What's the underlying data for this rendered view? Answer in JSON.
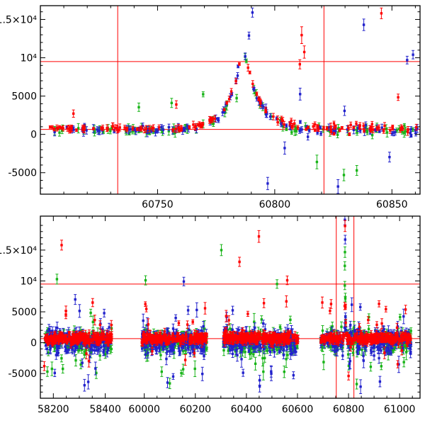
{
  "chart_data": {
    "type": "scatter",
    "description": "Two-panel light curve: flux vs MJD with error bars, three photometric series (blue, green, red), red crosshair reference lines. Bottom panel has a broken/compressed x-axis between observing seasons.",
    "panels": [
      {
        "id": "top",
        "type": "scatter",
        "x_axis": {
          "min": 60700,
          "max": 60862,
          "major_ticks": [
            60750,
            60800,
            60850
          ],
          "tick_labels": [
            "60750",
            "60800",
            "60850"
          ],
          "minor_step": 10,
          "map_breaks": [
            [
              60700,
              0
            ],
            [
              60862,
              1
            ]
          ]
        },
        "y_axis": {
          "min": -7800,
          "max": 16800,
          "major_ticks": [
            -5000,
            0,
            5000,
            10000,
            15000
          ],
          "tick_labels": [
            "-5000",
            "0",
            "5000",
            "10⁴",
            "1.5×10⁴"
          ],
          "minor_step": 1000
        },
        "ref_lines": {
          "color": "#ff0000",
          "horizontal": [
            650,
            9500
          ],
          "vertical": [
            60733,
            60821
          ]
        },
        "series": [
          {
            "name": "green",
            "color": "#18b418",
            "seed": 101,
            "n_mul": 0.72,
            "std_mul": 1.05,
            "level_add": -50,
            "err": 380,
            "neg_bias": 0.5
          },
          {
            "name": "blue",
            "color": "#2222cc",
            "seed": 202,
            "n_mul": 0.8,
            "std_mul": 1.15,
            "level_add": 0,
            "err": 330,
            "neg_bias": 0.5
          },
          {
            "name": "red",
            "color": "#ff0000",
            "seed": 303,
            "n_mul": 1.0,
            "std_mul": 0.8,
            "level_add": 150,
            "err": 280,
            "neg_bias": 0.3
          }
        ],
        "clusters": [
          {
            "x0": 60704,
            "x1": 60861,
            "n": 150,
            "level": 620,
            "std": 380,
            "out_frac": 0.03,
            "out_amp": 4200,
            "flare": {
              "t0": 60786.5,
              "amp": 11200,
              "rise": 5.5,
              "decay": 6.2
            },
            "wide_after": 60807,
            "wide_mul": 2.1
          }
        ],
        "extra_points": [
          {
            "s": "red",
            "x": 60811.5,
            "y": 12950,
            "e": 1100
          },
          {
            "s": "red",
            "x": 60812.6,
            "y": 10750,
            "e": 800
          },
          {
            "s": "red",
            "x": 60810.7,
            "y": 9150,
            "e": 600
          },
          {
            "s": "red",
            "x": 60845.5,
            "y": 15800,
            "e": 700
          },
          {
            "s": "red",
            "x": 60758,
            "y": 3900,
            "e": 500
          },
          {
            "s": "blue",
            "x": 60790.5,
            "y": 15900,
            "e": 600
          },
          {
            "s": "blue",
            "x": 60789,
            "y": 12900,
            "e": 450
          },
          {
            "s": "blue",
            "x": 60838,
            "y": 14300,
            "e": 750
          },
          {
            "s": "blue",
            "x": 60856.5,
            "y": 9700,
            "e": 500
          },
          {
            "s": "blue",
            "x": 60859,
            "y": 10400,
            "e": 550
          },
          {
            "s": "blue",
            "x": 60797,
            "y": -6400,
            "e": 800
          },
          {
            "s": "blue",
            "x": 60827,
            "y": -6800,
            "e": 900
          },
          {
            "s": "green",
            "x": 60742,
            "y": 3550,
            "e": 550
          },
          {
            "s": "green",
            "x": 60756,
            "y": 4100,
            "e": 600
          },
          {
            "s": "green",
            "x": 60818,
            "y": -3600,
            "e": 900
          },
          {
            "s": "green",
            "x": 60829.5,
            "y": -5300,
            "e": 750
          },
          {
            "s": "green",
            "x": 60835,
            "y": -4700,
            "e": 650
          }
        ]
      },
      {
        "id": "bottom",
        "type": "scatter",
        "x_axis": {
          "min": 58150,
          "max": 61080,
          "major_ticks": [
            58200,
            58400,
            60000,
            60200,
            60400,
            60600,
            60800,
            61000
          ],
          "tick_labels": [
            "58200",
            "58400",
            "60000",
            "60200",
            "60400",
            "60600",
            "60800",
            "61000"
          ],
          "minor_step": 50,
          "minor_skip": [
            58430,
            59960
          ],
          "map_breaks": [
            [
              58150,
              0
            ],
            [
              58450,
              0.205
            ],
            [
              59950,
              0.24
            ],
            [
              61080,
              1
            ]
          ]
        },
        "y_axis": {
          "min": -9000,
          "max": 20500,
          "major_ticks": [
            -5000,
            0,
            5000,
            10000,
            15000
          ],
          "tick_labels": [
            "-5000",
            "0",
            "5000",
            "10⁴",
            "1.5×10⁴"
          ],
          "minor_step": 1000
        },
        "ref_lines": {
          "color": "#ff0000",
          "horizontal": [
            650,
            9500
          ],
          "vertical": [
            60752,
            60821
          ]
        },
        "series": [
          {
            "name": "green",
            "color": "#18b418",
            "seed": 404,
            "n_mul": 0.7,
            "std_mul": 1.25,
            "level_add": -100,
            "err": 560,
            "neg_bias": 0.5
          },
          {
            "name": "blue",
            "color": "#2222cc",
            "seed": 505,
            "n_mul": 0.78,
            "std_mul": 1.35,
            "level_add": 0,
            "err": 540,
            "neg_bias": 0.5
          },
          {
            "name": "red",
            "color": "#ff0000",
            "seed": 606,
            "n_mul": 1.0,
            "std_mul": 0.55,
            "level_add": 550,
            "err": 420,
            "neg_bias": 0.3
          }
        ],
        "clusters": [
          {
            "x0": 58165,
            "x1": 58425,
            "n": 210,
            "level": 150,
            "std": 1400,
            "out_frac": 0.05,
            "out_amp": 5200
          },
          {
            "x0": 59990,
            "x1": 60245,
            "n": 210,
            "level": 150,
            "std": 1400,
            "out_frac": 0.05,
            "out_amp": 5200
          },
          {
            "x0": 60310,
            "x1": 60605,
            "n": 240,
            "level": 150,
            "std": 1400,
            "out_frac": 0.05,
            "out_amp": 5200
          },
          {
            "x0": 60690,
            "x1": 61045,
            "n": 260,
            "level": 150,
            "std": 1400,
            "out_frac": 0.05,
            "out_amp": 5200,
            "flare": {
              "t0": 60786,
              "amp": 15500,
              "rise": 1.1,
              "decay": 1.6
            }
          }
        ],
        "extra_points": [
          {
            "s": "red",
            "x": 60786.2,
            "y": 18900,
            "e": 900
          },
          {
            "s": "red",
            "x": 58232,
            "y": 15800,
            "e": 800
          },
          {
            "s": "red",
            "x": 60449,
            "y": 17200,
            "e": 950
          },
          {
            "s": "red",
            "x": 60373,
            "y": 13100,
            "e": 750
          },
          {
            "s": "red",
            "x": 60560,
            "y": 10100,
            "e": 700
          },
          {
            "s": "red",
            "x": 60800,
            "y": -5400,
            "e": 650
          },
          {
            "s": "blue",
            "x": 60785.6,
            "y": 19900,
            "e": 800
          },
          {
            "s": "blue",
            "x": 60786.8,
            "y": 16700,
            "e": 700
          },
          {
            "s": "blue",
            "x": 58320,
            "y": -6900,
            "e": 950
          },
          {
            "s": "blue",
            "x": 60452,
            "y": -7100,
            "e": 900
          },
          {
            "s": "blue",
            "x": 60923,
            "y": -6300,
            "e": 850
          },
          {
            "s": "blue",
            "x": 60155,
            "y": 9900,
            "e": 700
          },
          {
            "s": "green",
            "x": 58214,
            "y": 10300,
            "e": 800
          },
          {
            "s": "green",
            "x": 60302,
            "y": 15000,
            "e": 900
          },
          {
            "s": "green",
            "x": 60520,
            "y": 9500,
            "e": 700
          },
          {
            "s": "green",
            "x": 60100,
            "y": -6600,
            "e": 850
          },
          {
            "s": "green",
            "x": 60832,
            "y": -6700,
            "e": 800
          },
          {
            "s": "green",
            "x": 60005,
            "y": 10100,
            "e": 750
          }
        ]
      }
    ]
  }
}
